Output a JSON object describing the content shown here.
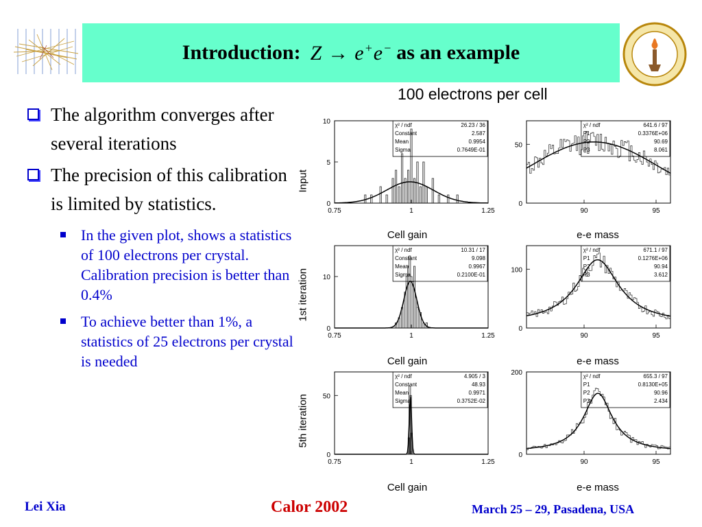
{
  "header": {
    "title_prefix": "Introduction:",
    "title_math": {
      "z": "Z",
      "e": "e",
      "plus": "+",
      "minus": "−",
      "arrow": "→"
    },
    "title_suffix": "as an example"
  },
  "bullets": [
    {
      "text": "The algorithm converges after several iterations"
    },
    {
      "text": "The precision of this calibration is limited by statistics."
    }
  ],
  "sub_bullets": [
    {
      "text": "In the given plot, shows a statistics of 100 electrons per crystal.  Calibration precision is better than 0.4%"
    },
    {
      "text": "To achieve better than 1%, a statistics of 25 electrons per crystal is needed"
    }
  ],
  "footer": {
    "left": "Lei Xia",
    "center": "Calor 2002",
    "right": "March 25 – 29, Pasadena, USA"
  },
  "colors": {
    "accent_green": "#66ffcc",
    "bullet_blue": "#0000cc",
    "footer_red": "#cc0000"
  },
  "chart_data": {
    "type": "grid",
    "title": "100 electrons per cell",
    "rows": [
      {
        "label": "Input",
        "charts": [
          {
            "type": "histogram",
            "xlabel": "Cell gain",
            "xlim": [
              0.75,
              1.25
            ],
            "ylim": [
              0,
              10
            ],
            "xticks": [
              "0.75",
              "1",
              "1.25"
            ],
            "yticks": [
              "0",
              "5",
              "10"
            ],
            "fit": {
              "type": "gaussian",
              "constant": 2.587,
              "mean": 0.9954,
              "sigma": 0.07649
            },
            "stats": [
              {
                "label": "χ² / ndf",
                "value": "26.23  /   36"
              },
              {
                "label": "Constant",
                "value": "2.587"
              },
              {
                "label": "Mean",
                "value": "0.9954"
              },
              {
                "label": "Sigma",
                "value": "0.7649E-01"
              }
            ],
            "hist": {
              "x": [
                0.85,
                0.87,
                0.9,
                0.92,
                0.94,
                0.95,
                0.96,
                0.97,
                0.98,
                0.99,
                1.0,
                1.01,
                1.02,
                1.03,
                1.04,
                1.05,
                1.07,
                1.09,
                1.12,
                1.15
              ],
              "y": [
                1,
                1,
                2,
                1,
                3,
                4,
                2,
                6,
                3,
                4,
                9,
                3,
                5,
                2,
                5,
                2,
                3,
                1,
                1,
                1
              ]
            }
          },
          {
            "type": "histogram",
            "xlabel": "e-e mass",
            "xlim": [
              86,
              96
            ],
            "ylim": [
              0,
              70
            ],
            "xticks": [
              "90",
              "95"
            ],
            "yticks": [
              "0",
              "50"
            ],
            "fit": {
              "type": "gaussian_bg",
              "peak": 90.69,
              "width": 8.061,
              "amp": 52,
              "bg": 0
            },
            "stats": [
              {
                "label": "χ² / ndf",
                "value": "641.6  /   97"
              },
              {
                "label": "P1",
                "value": "0.3376E+06"
              },
              {
                "label": "P2",
                "value": "90.69"
              },
              {
                "label": "P3",
                "value": "8.061"
              }
            ]
          }
        ]
      },
      {
        "label": "1st iteration",
        "charts": [
          {
            "type": "histogram",
            "xlabel": "Cell gain",
            "xlim": [
              0.75,
              1.25
            ],
            "ylim": [
              0,
              16
            ],
            "xticks": [
              "0.75",
              "1",
              "1.25"
            ],
            "yticks": [
              "0",
              "10"
            ],
            "fit": {
              "type": "gaussian",
              "constant": 9.098,
              "mean": 0.9967,
              "sigma": 0.021
            },
            "stats": [
              {
                "label": "χ² / ndf",
                "value": "10.31  /   17"
              },
              {
                "label": "Constant",
                "value": "9.098"
              },
              {
                "label": "Mean",
                "value": "0.9967"
              },
              {
                "label": "Sigma",
                "value": "0.2100E-01"
              }
            ],
            "hist": {
              "x": [
                0.95,
                0.96,
                0.97,
                0.98,
                0.985,
                0.99,
                0.995,
                1.0,
                1.005,
                1.01,
                1.015,
                1.02,
                1.03,
                1.04,
                1.05
              ],
              "y": [
                1,
                2,
                4,
                7,
                10,
                12,
                14,
                10,
                9,
                12,
                6,
                4,
                3,
                1,
                1
              ]
            }
          },
          {
            "type": "histogram",
            "xlabel": "e-e mass",
            "xlim": [
              86,
              96
            ],
            "ylim": [
              0,
              140
            ],
            "xticks": [
              "90",
              "95"
            ],
            "yticks": [
              "0",
              "100"
            ],
            "fit": {
              "type": "breit_wigner",
              "peak": 90.94,
              "width": 3.612,
              "amp": 108,
              "bg": 8
            },
            "stats": [
              {
                "label": "χ² / ndf",
                "value": "671.1  /   97"
              },
              {
                "label": "P1",
                "value": "0.1276E+06"
              },
              {
                "label": "P2",
                "value": "90.94"
              },
              {
                "label": "P3",
                "value": "3.612"
              }
            ]
          }
        ]
      },
      {
        "label": "5th iteration",
        "charts": [
          {
            "type": "histogram",
            "xlabel": "Cell gain",
            "xlim": [
              0.75,
              1.25
            ],
            "ylim": [
              0,
              70
            ],
            "xticks": [
              "0.75",
              "1",
              "1.25"
            ],
            "yticks": [
              "0",
              "50"
            ],
            "fit": {
              "type": "gaussian",
              "constant": 48.93,
              "mean": 0.9971,
              "sigma": 0.003752
            },
            "stats": [
              {
                "label": "χ² / ndf",
                "value": "4.905  /    3"
              },
              {
                "label": "Constant",
                "value": "48.93"
              },
              {
                "label": "Mean",
                "value": "0.9971"
              },
              {
                "label": "Sigma",
                "value": "0.3752E-02"
              }
            ],
            "hist": {
              "x": [
                0.992,
                0.995,
                0.998,
                1.001
              ],
              "y": [
                14,
                58,
                50,
                18
              ]
            }
          },
          {
            "type": "histogram",
            "xlabel": "e-e mass",
            "xlim": [
              86,
              96
            ],
            "ylim": [
              0,
              200
            ],
            "xticks": [
              "90",
              "95"
            ],
            "yticks": [
              "0",
              "200"
            ],
            "fit": {
              "type": "breit_wigner",
              "peak": 90.96,
              "width": 2.434,
              "amp": 142,
              "bg": 6
            },
            "stats": [
              {
                "label": "χ² / ndf",
                "value": "655.3  /   97"
              },
              {
                "label": "P1",
                "value": "0.8130E+05"
              },
              {
                "label": "P2",
                "value": "90.96"
              },
              {
                "label": "P3",
                "value": "2.434"
              }
            ]
          }
        ]
      }
    ]
  }
}
